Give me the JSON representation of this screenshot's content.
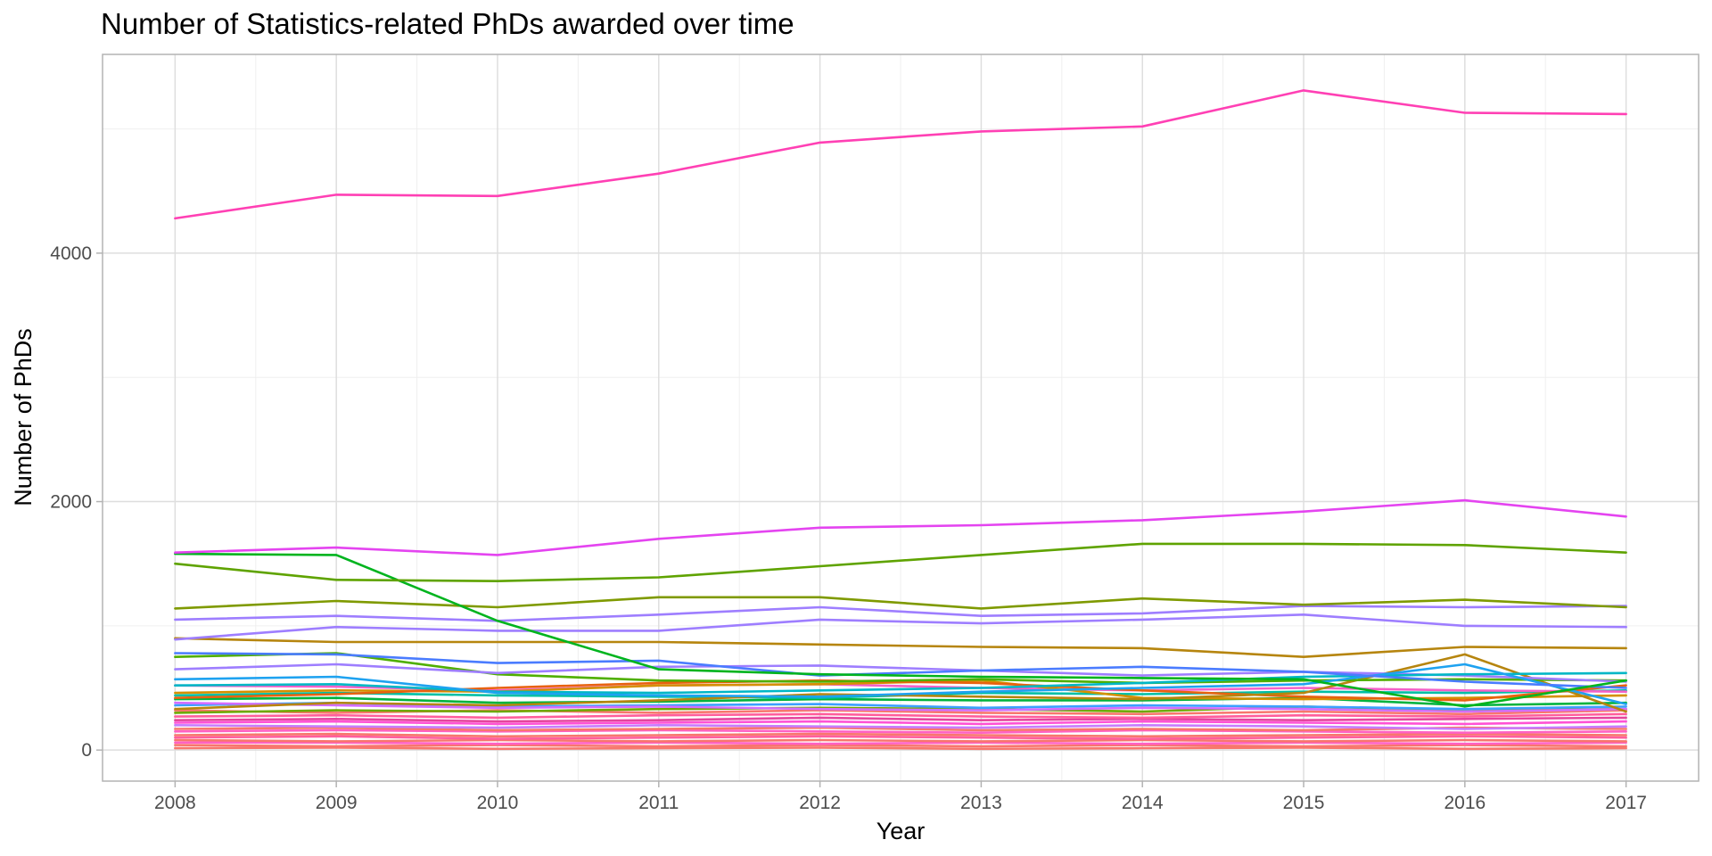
{
  "chart_data": {
    "type": "line",
    "title": "Number of Statistics-related PhDs awarded over time",
    "xlabel": "Year",
    "ylabel": "Number of PhDs",
    "x": [
      2008,
      2009,
      2010,
      2011,
      2012,
      2013,
      2014,
      2015,
      2016,
      2017
    ],
    "xlim": [
      2007.55,
      2017.45
    ],
    "ylim": [
      -250,
      5600
    ],
    "yticks": [
      0,
      2000,
      4000
    ],
    "grid": true,
    "legend": "none",
    "series": [
      {
        "color": "#FF40B4",
        "values": [
          4280,
          4470,
          4460,
          4640,
          4890,
          4980,
          5020,
          5310,
          5130,
          5120
        ]
      },
      {
        "color": "#E444F0",
        "values": [
          1590,
          1630,
          1570,
          1700,
          1790,
          1810,
          1850,
          1920,
          2010,
          1880
        ]
      },
      {
        "color": "#5FA300",
        "values": [
          1500,
          1370,
          1360,
          1390,
          1480,
          1570,
          1660,
          1660,
          1650,
          1590
        ]
      },
      {
        "color": "#00B41E",
        "values": [
          1580,
          1570,
          1040,
          650,
          610,
          590,
          580,
          570,
          350,
          560
        ]
      },
      {
        "color": "#7F9A00",
        "values": [
          1140,
          1200,
          1150,
          1230,
          1230,
          1140,
          1220,
          1170,
          1210,
          1150
        ]
      },
      {
        "color": "#9E7EFF",
        "values": [
          1050,
          1080,
          1040,
          1090,
          1150,
          1080,
          1100,
          1160,
          1150,
          1160
        ]
      },
      {
        "color": "#9E7EFF",
        "values": [
          890,
          990,
          960,
          960,
          1050,
          1020,
          1050,
          1090,
          1000,
          990
        ]
      },
      {
        "color": "#B6850E",
        "values": [
          900,
          870,
          870,
          870,
          850,
          830,
          820,
          750,
          830,
          820
        ]
      },
      {
        "color": "#4A7CFF",
        "values": [
          780,
          770,
          700,
          720,
          600,
          640,
          670,
          630,
          550,
          500
        ]
      },
      {
        "color": "#1EA2F0",
        "values": [
          570,
          590,
          460,
          440,
          430,
          470,
          500,
          530,
          690,
          370
        ]
      },
      {
        "color": "#00B7C6",
        "values": [
          520,
          530,
          470,
          460,
          480,
          500,
          540,
          590,
          610,
          620
        ]
      },
      {
        "color": "#9E7EFF",
        "values": [
          650,
          690,
          620,
          670,
          680,
          640,
          600,
          630,
          600,
          550
        ]
      },
      {
        "color": "#4FAF00",
        "values": [
          750,
          780,
          610,
          560,
          550,
          570,
          540,
          560,
          570,
          560
        ]
      },
      {
        "color": "#B6850E",
        "values": [
          330,
          380,
          360,
          400,
          450,
          430,
          410,
          460,
          770,
          310
        ]
      },
      {
        "color": "#E8620F",
        "values": [
          420,
          450,
          500,
          540,
          560,
          540,
          480,
          430,
          400,
          520
        ]
      },
      {
        "color": "#D59000",
        "values": [
          460,
          480,
          470,
          520,
          530,
          560,
          420,
          410,
          420,
          440
        ]
      },
      {
        "color": "#F460C8",
        "values": [
          520,
          510,
          480,
          520,
          530,
          500,
          480,
          500,
          480,
          470
        ]
      },
      {
        "color": "#00BFA5",
        "values": [
          440,
          460,
          440,
          430,
          420,
          460,
          450,
          470,
          460,
          480
        ]
      },
      {
        "color": "#00B33E",
        "values": [
          410,
          420,
          380,
          390,
          410,
          400,
          400,
          420,
          360,
          380
        ]
      },
      {
        "color": "#D46DFF",
        "values": [
          380,
          360,
          340,
          350,
          330,
          320,
          340,
          330,
          310,
          330
        ]
      },
      {
        "color": "#3CA0FF",
        "values": [
          360,
          380,
          350,
          360,
          370,
          340,
          360,
          350,
          330,
          350
        ]
      },
      {
        "color": "#6EA800",
        "values": [
          300,
          320,
          310,
          330,
          340,
          330,
          310,
          350,
          320,
          330
        ]
      },
      {
        "color": "#F8766D",
        "values": [
          320,
          300,
          320,
          300,
          320,
          300,
          290,
          310,
          290,
          320
        ]
      },
      {
        "color": "#FF5E9C",
        "values": [
          270,
          280,
          260,
          280,
          290,
          270,
          260,
          280,
          270,
          290
        ]
      },
      {
        "color": "#E5459D",
        "values": [
          240,
          250,
          230,
          240,
          260,
          240,
          250,
          240,
          250,
          260
        ]
      },
      {
        "color": "#FF52D4",
        "values": [
          220,
          230,
          210,
          220,
          230,
          210,
          230,
          220,
          210,
          230
        ]
      },
      {
        "color": "#C77CFF",
        "values": [
          200,
          190,
          180,
          200,
          190,
          180,
          200,
          190,
          170,
          190
        ]
      },
      {
        "color": "#F8766D",
        "values": [
          170,
          180,
          160,
          170,
          180,
          160,
          170,
          160,
          180,
          170
        ]
      },
      {
        "color": "#FF61C3",
        "values": [
          150,
          160,
          150,
          160,
          150,
          140,
          160,
          150,
          140,
          150
        ]
      },
      {
        "color": "#F8766D",
        "values": [
          120,
          130,
          110,
          120,
          130,
          120,
          110,
          120,
          130,
          120
        ]
      },
      {
        "color": "#FF5E9C",
        "values": [
          100,
          110,
          90,
          100,
          110,
          100,
          90,
          100,
          110,
          100
        ]
      },
      {
        "color": "#F8766D",
        "values": [
          80,
          70,
          80,
          70,
          80,
          70,
          80,
          70,
          80,
          70
        ]
      },
      {
        "color": "#FF61C3",
        "values": [
          60,
          60,
          50,
          60,
          50,
          60,
          50,
          60,
          50,
          60
        ]
      },
      {
        "color": "#F8766D",
        "values": [
          40,
          30,
          40,
          30,
          40,
          30,
          40,
          30,
          40,
          30
        ]
      },
      {
        "color": "#F8766D",
        "values": [
          15,
          20,
          10,
          15,
          20,
          10,
          15,
          20,
          10,
          15
        ]
      }
    ]
  }
}
